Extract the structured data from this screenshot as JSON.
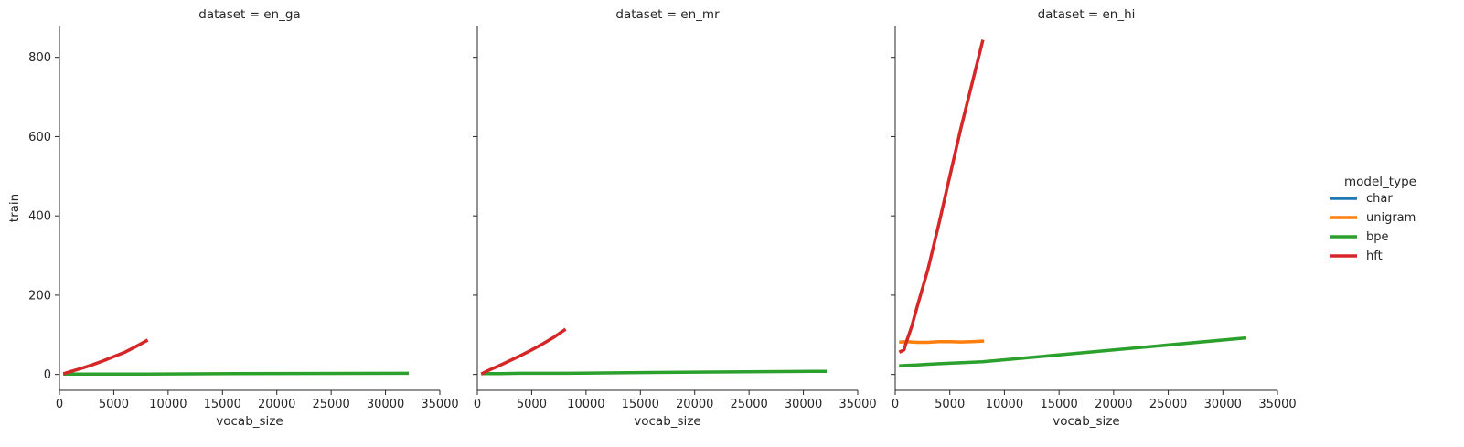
{
  "chart_data": {
    "type": "line",
    "facet_var": "dataset",
    "legend": {
      "title": "model_type",
      "placement": "right",
      "entries": [
        {
          "name": "char",
          "color": "#1f77b4"
        },
        {
          "name": "unigram",
          "color": "#ff7f0e"
        },
        {
          "name": "bpe",
          "color": "#2ca02c"
        },
        {
          "name": "hft",
          "color": "#d62728"
        }
      ]
    },
    "xlabel": "vocab_size",
    "ylabel": "train",
    "xlim": [
      0,
      35000
    ],
    "ylim": [
      -40,
      880
    ],
    "x_ticks": [
      0,
      5000,
      10000,
      15000,
      20000,
      25000,
      30000,
      35000
    ],
    "y_ticks": [
      0,
      200,
      400,
      600,
      800
    ],
    "facets": [
      {
        "title": "dataset = en_ga",
        "series": [
          {
            "name": "bpe",
            "points": [
              [
                500,
                1
              ],
              [
                1000,
                1
              ],
              [
                2000,
                1
              ],
              [
                4000,
                1
              ],
              [
                8000,
                1
              ],
              [
                16000,
                2
              ],
              [
                32000,
                3
              ]
            ]
          },
          {
            "name": "hft",
            "points": [
              [
                500,
                3
              ],
              [
                1000,
                7
              ],
              [
                2000,
                15
              ],
              [
                3000,
                24
              ],
              [
                4000,
                34
              ],
              [
                5000,
                45
              ],
              [
                6000,
                56
              ],
              [
                7000,
                70
              ],
              [
                8000,
                85
              ]
            ]
          }
        ]
      },
      {
        "title": "dataset = en_mr",
        "series": [
          {
            "name": "bpe",
            "points": [
              [
                500,
                2
              ],
              [
                1000,
                2
              ],
              [
                2000,
                2
              ],
              [
                4000,
                3
              ],
              [
                8000,
                3
              ],
              [
                16000,
                5
              ],
              [
                32000,
                8
              ]
            ]
          },
          {
            "name": "hft",
            "points": [
              [
                500,
                3
              ],
              [
                1000,
                10
              ],
              [
                2000,
                22
              ],
              [
                3000,
                35
              ],
              [
                4000,
                48
              ],
              [
                5000,
                62
              ],
              [
                6000,
                77
              ],
              [
                7000,
                93
              ],
              [
                8000,
                112
              ]
            ]
          }
        ]
      },
      {
        "title": "dataset = en_hi",
        "series": [
          {
            "name": "unigram",
            "points": [
              [
                500,
                82
              ],
              [
                1000,
                83
              ],
              [
                2000,
                81
              ],
              [
                3000,
                81
              ],
              [
                4000,
                83
              ],
              [
                5000,
                83
              ],
              [
                6000,
                82
              ],
              [
                7000,
                83
              ],
              [
                8000,
                84
              ]
            ]
          },
          {
            "name": "bpe",
            "points": [
              [
                500,
                22
              ],
              [
                1000,
                23
              ],
              [
                2000,
                24
              ],
              [
                4000,
                27
              ],
              [
                8000,
                32
              ],
              [
                16000,
                52
              ],
              [
                32000,
                92
              ]
            ]
          },
          {
            "name": "hft",
            "points": [
              [
                500,
                58
              ],
              [
                800,
                62
              ],
              [
                1000,
                80
              ],
              [
                1500,
                120
              ],
              [
                2000,
                170
              ],
              [
                3000,
                265
              ],
              [
                4000,
                380
              ],
              [
                5000,
                500
              ],
              [
                6000,
                620
              ],
              [
                7000,
                730
              ],
              [
                8000,
                840
              ]
            ]
          }
        ]
      }
    ]
  }
}
